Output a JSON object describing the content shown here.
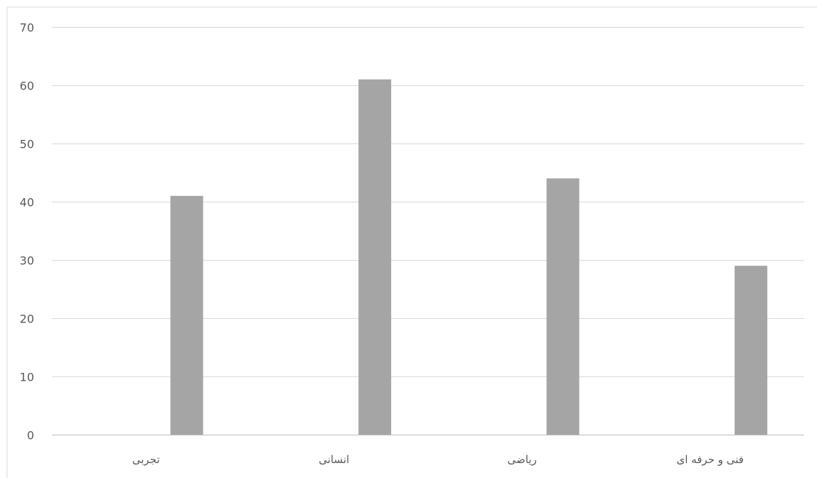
{
  "chart_data": {
    "type": "bar",
    "categories": [
      "تجربی",
      "انسانی",
      "ریاضی",
      "فنی و حرفه ای"
    ],
    "series": [
      {
        "values": [
          41,
          61,
          44,
          29
        ],
        "color": "#a5a5a5"
      }
    ],
    "title": "",
    "xlabel": "",
    "ylabel": "",
    "ylim": [
      0,
      70
    ],
    "yticks": [
      0,
      10,
      20,
      30,
      40,
      50,
      60,
      70
    ],
    "grid": true,
    "legend": "none",
    "colors": {
      "bar": "#a5a5a5",
      "grid": "#d9d9d9",
      "text": "#595959"
    }
  }
}
